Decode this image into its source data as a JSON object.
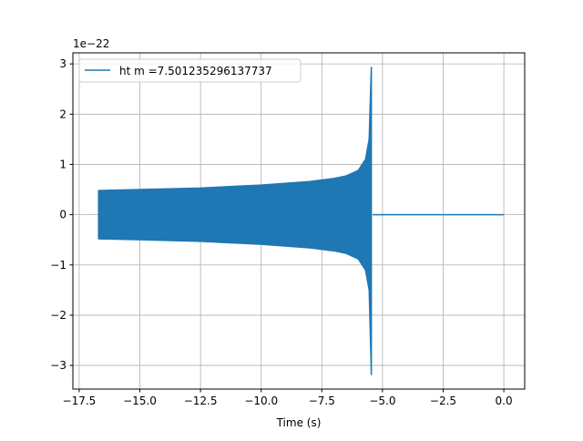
{
  "chart_data": {
    "type": "line",
    "title": "",
    "xlabel": "Time (s)",
    "ylabel": "",
    "y_offset_label": "1e−22",
    "xlim": [
      -17.76,
      0.86
    ],
    "ylim": [
      -3.47,
      3.22
    ],
    "grid": true,
    "legend_placement": "upper-left",
    "x_ticks": [
      -17.5,
      -15.0,
      -12.5,
      -10.0,
      -7.5,
      -5.0,
      -2.5,
      0.0
    ],
    "x_tick_labels": [
      "−17.5",
      "−15.0",
      "−12.5",
      "−10.0",
      "−7.5",
      "−5.0",
      "−2.5",
      "0.0"
    ],
    "y_ticks": [
      -3,
      -2,
      -1,
      0,
      1,
      2,
      3
    ],
    "y_tick_labels": [
      "−3",
      "−2",
      "−1",
      "0",
      "1",
      "2",
      "3"
    ],
    "series": [
      {
        "name": "ht m =7.501235296137737",
        "color": "#1f77b4",
        "oscillation_envelope": {
          "t": [
            -16.7,
            -15.0,
            -12.5,
            -10.0,
            -8.0,
            -7.0,
            -6.5,
            -6.0,
            -5.7,
            -5.55,
            -5.5,
            -5.46
          ],
          "upper": [
            0.48,
            0.5,
            0.53,
            0.59,
            0.66,
            0.72,
            0.77,
            0.88,
            1.1,
            1.5,
            2.3,
            2.93
          ],
          "lower": [
            -0.48,
            -0.5,
            -0.53,
            -0.59,
            -0.66,
            -0.72,
            -0.77,
            -0.88,
            -1.1,
            -1.5,
            -2.4,
            -3.18
          ]
        },
        "flat_segment": {
          "t": [
            -5.4,
            0.0
          ],
          "y": [
            0,
            0
          ]
        }
      }
    ]
  }
}
